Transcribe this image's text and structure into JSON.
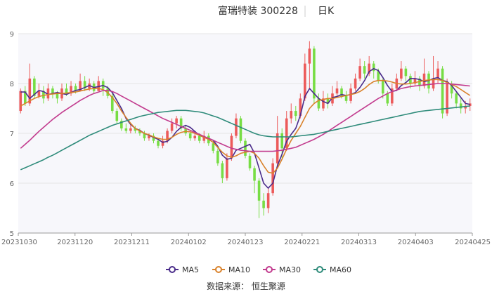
{
  "header": {
    "title": "富瑞特装 300228",
    "period": "日K"
  },
  "source": "数据来源： 恒生聚源",
  "colors": {
    "up": "#ec5a5a",
    "down": "#77dd44",
    "ma5": "#4a2c8a",
    "ma10": "#d9822b",
    "ma30": "#c23b8e",
    "ma60": "#2e8b7a",
    "grid": "#e6e6e6",
    "plot_bg": "#f7f7fb"
  },
  "chart_data": {
    "type": "candlestick",
    "ylim": [
      5,
      9
    ],
    "y_ticks": [
      "5",
      "6",
      "7",
      "8",
      "9"
    ],
    "x_ticks": [
      "20231030",
      "20231120",
      "20231211",
      "20240102",
      "20240123",
      "20240221",
      "20240313",
      "20240403",
      "20240425"
    ],
    "candles": [
      {
        "o": 7.45,
        "c": 7.85,
        "h": 7.9,
        "l": 7.4
      },
      {
        "o": 7.85,
        "c": 7.6,
        "h": 7.95,
        "l": 7.55
      },
      {
        "o": 7.6,
        "c": 8.1,
        "h": 8.4,
        "l": 7.55
      },
      {
        "o": 8.1,
        "c": 7.75,
        "h": 8.15,
        "l": 7.7
      },
      {
        "o": 7.75,
        "c": 7.85,
        "h": 8.0,
        "l": 7.7
      },
      {
        "o": 7.85,
        "c": 7.7,
        "h": 7.95,
        "l": 7.6
      },
      {
        "o": 7.7,
        "c": 7.9,
        "h": 8.0,
        "l": 7.65
      },
      {
        "o": 7.9,
        "c": 7.8,
        "h": 7.95,
        "l": 7.7
      },
      {
        "o": 7.8,
        "c": 7.7,
        "h": 7.85,
        "l": 7.6
      },
      {
        "o": 7.7,
        "c": 7.9,
        "h": 8.0,
        "l": 7.65
      },
      {
        "o": 7.9,
        "c": 7.8,
        "h": 8.0,
        "l": 7.75
      },
      {
        "o": 7.8,
        "c": 7.95,
        "h": 8.05,
        "l": 7.75
      },
      {
        "o": 7.95,
        "c": 7.85,
        "h": 8.0,
        "l": 7.8
      },
      {
        "o": 7.85,
        "c": 8.05,
        "h": 8.2,
        "l": 7.85
      },
      {
        "o": 8.05,
        "c": 7.9,
        "h": 8.15,
        "l": 7.85
      },
      {
        "o": 7.9,
        "c": 8.0,
        "h": 8.1,
        "l": 7.85
      },
      {
        "o": 8.0,
        "c": 7.85,
        "h": 8.05,
        "l": 7.8
      },
      {
        "o": 7.85,
        "c": 8.05,
        "h": 8.15,
        "l": 7.85
      },
      {
        "o": 8.05,
        "c": 7.9,
        "h": 8.1,
        "l": 7.75
      },
      {
        "o": 7.9,
        "c": 7.75,
        "h": 7.95,
        "l": 7.7
      },
      {
        "o": 7.75,
        "c": 7.45,
        "h": 7.8,
        "l": 7.4
      },
      {
        "o": 7.45,
        "c": 7.25,
        "h": 7.5,
        "l": 7.2
      },
      {
        "o": 7.25,
        "c": 7.1,
        "h": 7.3,
        "l": 7.05
      },
      {
        "o": 7.1,
        "c": 7.05,
        "h": 7.2,
        "l": 7.0
      },
      {
        "o": 7.05,
        "c": 7.1,
        "h": 7.2,
        "l": 7.0
      },
      {
        "o": 7.1,
        "c": 7.05,
        "h": 7.15,
        "l": 7.0
      },
      {
        "o": 7.05,
        "c": 7.0,
        "h": 7.1,
        "l": 6.95
      },
      {
        "o": 7.0,
        "c": 6.9,
        "h": 7.05,
        "l": 6.85
      },
      {
        "o": 6.9,
        "c": 6.95,
        "h": 7.0,
        "l": 6.85
      },
      {
        "o": 6.95,
        "c": 6.85,
        "h": 7.0,
        "l": 6.8
      },
      {
        "o": 6.85,
        "c": 6.75,
        "h": 6.9,
        "l": 6.7
      },
      {
        "o": 6.75,
        "c": 6.85,
        "h": 6.95,
        "l": 6.7
      },
      {
        "o": 6.85,
        "c": 7.05,
        "h": 7.1,
        "l": 6.8
      },
      {
        "o": 7.05,
        "c": 7.2,
        "h": 7.3,
        "l": 7.0
      },
      {
        "o": 7.2,
        "c": 7.3,
        "h": 7.35,
        "l": 7.1
      },
      {
        "o": 7.3,
        "c": 7.1,
        "h": 7.35,
        "l": 7.05
      },
      {
        "o": 7.1,
        "c": 7.0,
        "h": 7.15,
        "l": 6.95
      },
      {
        "o": 7.0,
        "c": 6.9,
        "h": 7.05,
        "l": 6.85
      },
      {
        "o": 6.9,
        "c": 6.95,
        "h": 7.05,
        "l": 6.85
      },
      {
        "o": 6.95,
        "c": 6.85,
        "h": 7.0,
        "l": 6.8
      },
      {
        "o": 6.85,
        "c": 6.95,
        "h": 7.05,
        "l": 6.8
      },
      {
        "o": 6.95,
        "c": 6.8,
        "h": 7.0,
        "l": 6.75
      },
      {
        "o": 6.8,
        "c": 6.65,
        "h": 6.85,
        "l": 6.6
      },
      {
        "o": 6.65,
        "c": 6.4,
        "h": 6.7,
        "l": 6.35
      },
      {
        "o": 6.4,
        "c": 6.1,
        "h": 6.45,
        "l": 6.0
      },
      {
        "o": 6.1,
        "c": 6.5,
        "h": 6.6,
        "l": 6.05
      },
      {
        "o": 6.5,
        "c": 6.95,
        "h": 7.0,
        "l": 6.45
      },
      {
        "o": 6.95,
        "c": 7.3,
        "h": 7.4,
        "l": 6.9
      },
      {
        "o": 7.3,
        "c": 6.85,
        "h": 7.35,
        "l": 6.8
      },
      {
        "o": 6.85,
        "c": 6.55,
        "h": 6.9,
        "l": 6.5
      },
      {
        "o": 6.55,
        "c": 6.3,
        "h": 6.6,
        "l": 6.25
      },
      {
        "o": 6.3,
        "c": 6.05,
        "h": 6.35,
        "l": 5.8
      },
      {
        "o": 6.05,
        "c": 5.65,
        "h": 6.1,
        "l": 5.3
      },
      {
        "o": 5.65,
        "c": 5.5,
        "h": 5.8,
        "l": 5.35
      },
      {
        "o": 5.5,
        "c": 5.8,
        "h": 5.9,
        "l": 5.4
      },
      {
        "o": 5.8,
        "c": 6.4,
        "h": 6.5,
        "l": 5.75
      },
      {
        "o": 6.4,
        "c": 7.0,
        "h": 7.35,
        "l": 6.35
      },
      {
        "o": 7.0,
        "c": 6.7,
        "h": 7.1,
        "l": 6.5
      },
      {
        "o": 6.7,
        "c": 7.3,
        "h": 7.45,
        "l": 6.65
      },
      {
        "o": 7.3,
        "c": 7.45,
        "h": 7.6,
        "l": 7.2
      },
      {
        "o": 7.45,
        "c": 7.35,
        "h": 7.55,
        "l": 7.25
      },
      {
        "o": 7.35,
        "c": 7.7,
        "h": 7.8,
        "l": 7.3
      },
      {
        "o": 7.7,
        "c": 8.4,
        "h": 8.6,
        "l": 7.65
      },
      {
        "o": 8.4,
        "c": 8.7,
        "h": 8.85,
        "l": 7.9
      },
      {
        "o": 8.7,
        "c": 7.7,
        "h": 8.75,
        "l": 7.6
      },
      {
        "o": 7.7,
        "c": 7.5,
        "h": 7.8,
        "l": 7.45
      },
      {
        "o": 7.5,
        "c": 7.7,
        "h": 7.85,
        "l": 7.45
      },
      {
        "o": 7.7,
        "c": 7.6,
        "h": 7.8,
        "l": 7.5
      },
      {
        "o": 7.6,
        "c": 7.8,
        "h": 7.95,
        "l": 7.55
      },
      {
        "o": 7.8,
        "c": 7.9,
        "h": 8.05,
        "l": 7.75
      },
      {
        "o": 7.9,
        "c": 7.75,
        "h": 7.95,
        "l": 7.7
      },
      {
        "o": 7.75,
        "c": 7.65,
        "h": 7.85,
        "l": 7.6
      },
      {
        "o": 7.65,
        "c": 7.9,
        "h": 8.0,
        "l": 7.6
      },
      {
        "o": 7.9,
        "c": 8.1,
        "h": 8.2,
        "l": 7.85
      },
      {
        "o": 8.1,
        "c": 8.35,
        "h": 8.5,
        "l": 8.05
      },
      {
        "o": 8.35,
        "c": 8.2,
        "h": 8.45,
        "l": 8.1
      },
      {
        "o": 8.2,
        "c": 8.4,
        "h": 8.55,
        "l": 8.15
      },
      {
        "o": 8.4,
        "c": 8.25,
        "h": 8.45,
        "l": 8.1
      },
      {
        "o": 8.25,
        "c": 8.05,
        "h": 8.3,
        "l": 8.0
      },
      {
        "o": 8.05,
        "c": 7.8,
        "h": 8.1,
        "l": 7.7
      },
      {
        "o": 7.8,
        "c": 7.6,
        "h": 7.85,
        "l": 7.55
      },
      {
        "o": 7.6,
        "c": 7.9,
        "h": 8.0,
        "l": 7.55
      },
      {
        "o": 7.9,
        "c": 8.1,
        "h": 8.2,
        "l": 7.85
      },
      {
        "o": 8.1,
        "c": 8.3,
        "h": 8.45,
        "l": 8.05
      },
      {
        "o": 8.3,
        "c": 8.15,
        "h": 8.35,
        "l": 8.05
      },
      {
        "o": 8.15,
        "c": 8.0,
        "h": 8.2,
        "l": 7.9
      },
      {
        "o": 8.0,
        "c": 8.1,
        "h": 8.25,
        "l": 7.95
      },
      {
        "o": 8.1,
        "c": 7.95,
        "h": 8.15,
        "l": 7.85
      },
      {
        "o": 7.95,
        "c": 8.2,
        "h": 8.5,
        "l": 7.9
      },
      {
        "o": 8.2,
        "c": 7.9,
        "h": 8.25,
        "l": 7.8
      },
      {
        "o": 7.9,
        "c": 8.1,
        "h": 8.55,
        "l": 7.85
      },
      {
        "o": 8.1,
        "c": 8.3,
        "h": 8.45,
        "l": 8.0
      },
      {
        "o": 8.3,
        "c": 7.4,
        "h": 8.35,
        "l": 7.3
      },
      {
        "o": 7.4,
        "c": 8.0,
        "h": 8.1,
        "l": 7.35
      },
      {
        "o": 8.0,
        "c": 7.8,
        "h": 8.05,
        "l": 7.7
      },
      {
        "o": 7.8,
        "c": 7.6,
        "h": 7.85,
        "l": 7.5
      },
      {
        "o": 7.6,
        "c": 7.5,
        "h": 7.7,
        "l": 7.4
      },
      {
        "o": 7.5,
        "c": 7.55,
        "h": 7.65,
        "l": 7.4
      },
      {
        "o": 7.55,
        "c": 7.6,
        "h": 7.7,
        "l": 7.45
      }
    ],
    "series": [
      {
        "name": "MA5",
        "values": [
          7.83,
          7.83,
          7.7,
          7.78,
          7.86,
          7.84,
          7.78,
          7.8,
          7.82,
          7.8,
          7.78,
          7.82,
          7.86,
          7.88,
          7.92,
          7.96,
          7.92,
          7.94,
          7.96,
          7.92,
          7.82,
          7.66,
          7.5,
          7.3,
          7.18,
          7.1,
          7.06,
          7.0,
          6.96,
          6.92,
          6.88,
          6.82,
          6.84,
          6.92,
          7.04,
          7.12,
          7.16,
          7.12,
          7.04,
          6.96,
          6.92,
          6.9,
          6.86,
          6.74,
          6.56,
          6.48,
          6.5,
          6.66,
          6.7,
          6.74,
          6.78,
          6.6,
          6.3,
          6.0,
          5.9,
          6.0,
          6.35,
          6.58,
          6.84,
          6.98,
          7.1,
          7.36,
          7.74,
          7.9,
          7.8,
          7.7,
          7.64,
          7.6,
          7.72,
          7.74,
          7.78,
          7.76,
          7.78,
          7.82,
          7.92,
          8.06,
          8.24,
          8.3,
          8.26,
          8.12,
          7.96,
          7.84,
          7.86,
          7.96,
          8.02,
          8.1,
          8.1,
          8.08,
          8.04,
          8.06,
          8.1,
          8.12,
          8.06,
          8.04,
          7.96,
          7.84,
          7.72,
          7.6,
          7.58
        ]
      },
      {
        "name": "MA10",
        "values": [
          7.55,
          7.6,
          7.65,
          7.7,
          7.74,
          7.76,
          7.78,
          7.79,
          7.8,
          7.8,
          7.81,
          7.82,
          7.83,
          7.85,
          7.87,
          7.89,
          7.9,
          7.9,
          7.88,
          7.82,
          7.72,
          7.6,
          7.45,
          7.32,
          7.2,
          7.1,
          7.05,
          7.0,
          6.97,
          6.93,
          6.9,
          6.88,
          6.88,
          6.92,
          6.98,
          7.02,
          7.04,
          7.03,
          7.0,
          6.96,
          6.92,
          6.88,
          6.82,
          6.72,
          6.62,
          6.55,
          6.52,
          6.55,
          6.6,
          6.62,
          6.64,
          6.6,
          6.5,
          6.35,
          6.22,
          6.2,
          6.3,
          6.48,
          6.68,
          6.86,
          7.0,
          7.14,
          7.32,
          7.5,
          7.6,
          7.66,
          7.68,
          7.7,
          7.7,
          7.72,
          7.74,
          7.76,
          7.78,
          7.8,
          7.84,
          7.9,
          7.98,
          8.04,
          8.06,
          8.06,
          8.05,
          8.03,
          8.0,
          7.99,
          7.99,
          8.0,
          8.02,
          8.04,
          8.06,
          8.07,
          8.08,
          8.08,
          8.06,
          8.02,
          7.98,
          7.94,
          7.88,
          7.82,
          7.76
        ]
      },
      {
        "name": "MA30",
        "values": [
          6.7,
          6.78,
          6.86,
          6.95,
          7.04,
          7.12,
          7.2,
          7.28,
          7.35,
          7.42,
          7.48,
          7.54,
          7.6,
          7.66,
          7.71,
          7.76,
          7.8,
          7.83,
          7.86,
          7.86,
          7.84,
          7.8,
          7.75,
          7.7,
          7.65,
          7.6,
          7.55,
          7.5,
          7.45,
          7.4,
          7.35,
          7.3,
          7.26,
          7.22,
          7.18,
          7.14,
          7.1,
          7.06,
          7.02,
          6.98,
          6.94,
          6.9,
          6.86,
          6.82,
          6.78,
          6.74,
          6.7,
          6.68,
          6.66,
          6.65,
          6.64,
          6.64,
          6.64,
          6.64,
          6.64,
          6.64,
          6.65,
          6.66,
          6.68,
          6.7,
          6.72,
          6.76,
          6.8,
          6.84,
          6.88,
          6.93,
          6.98,
          7.04,
          7.1,
          7.16,
          7.22,
          7.28,
          7.34,
          7.4,
          7.46,
          7.52,
          7.58,
          7.64,
          7.7,
          7.75,
          7.8,
          7.84,
          7.87,
          7.9,
          7.92,
          7.94,
          7.95,
          7.96,
          7.97,
          7.98,
          7.99,
          8.0,
          8.0,
          8.0,
          7.99,
          7.98,
          7.97,
          7.96,
          7.95
        ]
      },
      {
        "name": "MA60",
        "values": [
          6.27,
          6.31,
          6.35,
          6.39,
          6.43,
          6.47,
          6.52,
          6.56,
          6.61,
          6.66,
          6.71,
          6.76,
          6.81,
          6.86,
          6.91,
          6.96,
          7.0,
          7.04,
          7.08,
          7.12,
          7.16,
          7.19,
          7.22,
          7.25,
          7.28,
          7.31,
          7.34,
          7.36,
          7.38,
          7.4,
          7.42,
          7.43,
          7.44,
          7.45,
          7.46,
          7.46,
          7.46,
          7.45,
          7.44,
          7.43,
          7.41,
          7.38,
          7.35,
          7.32,
          7.28,
          7.24,
          7.2,
          7.16,
          7.12,
          7.08,
          7.04,
          7.0,
          6.97,
          6.95,
          6.94,
          6.93,
          6.93,
          6.93,
          6.93,
          6.93,
          6.94,
          6.95,
          6.96,
          6.97,
          6.98,
          7.0,
          7.02,
          7.04,
          7.06,
          7.08,
          7.1,
          7.12,
          7.14,
          7.16,
          7.18,
          7.2,
          7.22,
          7.24,
          7.26,
          7.28,
          7.3,
          7.32,
          7.34,
          7.36,
          7.38,
          7.4,
          7.42,
          7.44,
          7.45,
          7.46,
          7.47,
          7.48,
          7.49,
          7.5,
          7.51,
          7.52,
          7.53,
          7.54,
          7.55
        ]
      }
    ]
  }
}
